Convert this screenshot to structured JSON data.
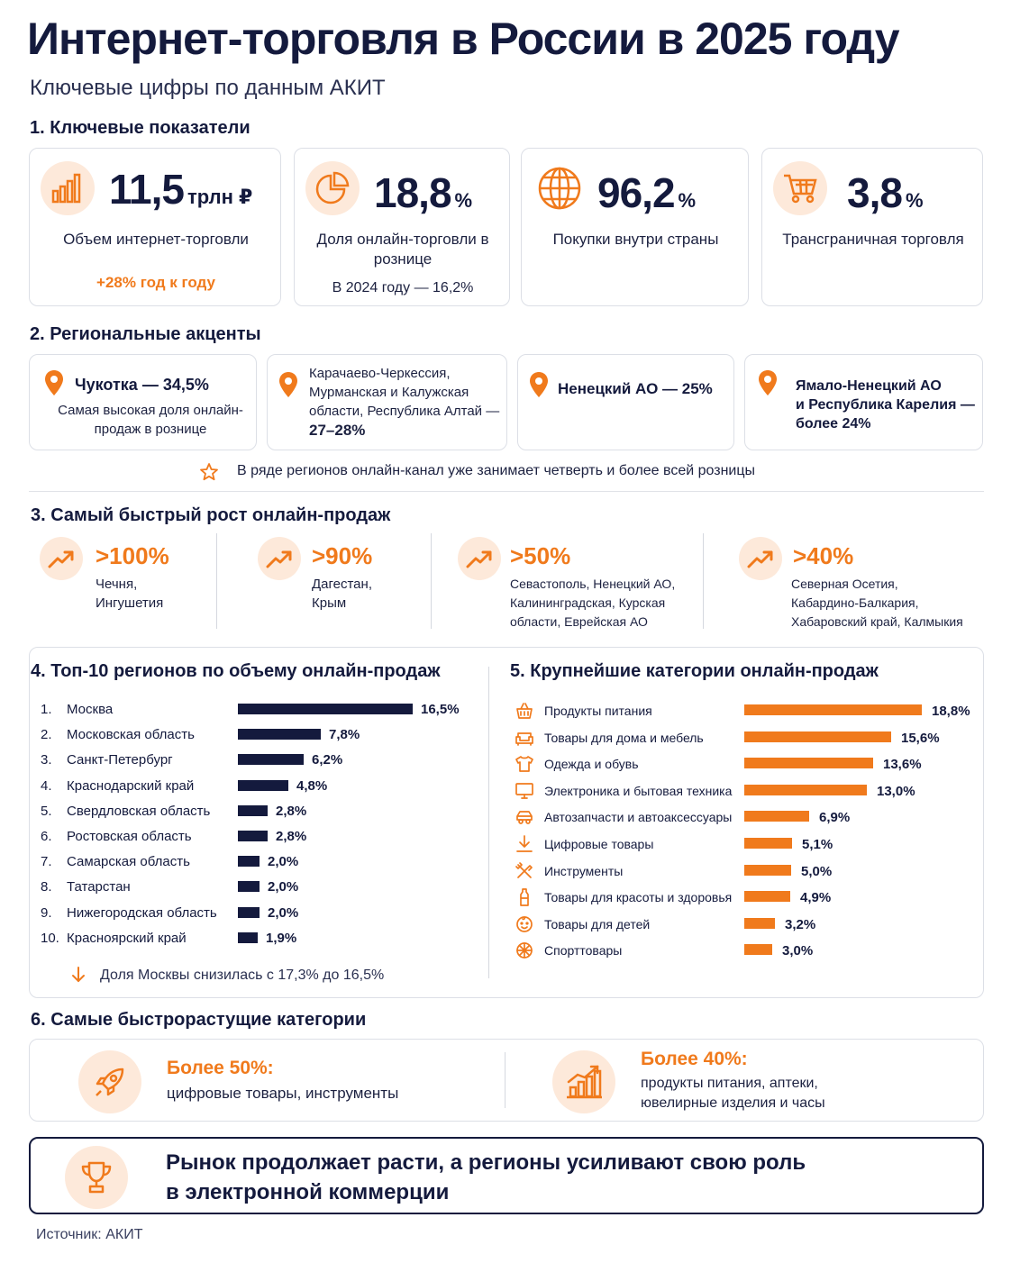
{
  "header": {
    "title": "Интернет-торговля в России в 2025 году",
    "subtitle": "Ключевые цифры по данным АКИТ"
  },
  "kpi": {
    "section_title": "1. Ключевые показатели",
    "items": [
      {
        "value": "11,5",
        "unit": "трлн ₽",
        "label": "Объем интернет-торговли",
        "note": "+28% год к году",
        "icon": "bar-chart-icon"
      },
      {
        "value": "18,8",
        "unit": "%",
        "label": "Доля онлайн-торговли в рознице",
        "note": "В 2024 году — 16,2%",
        "icon": "pie-chart-icon"
      },
      {
        "value": "96,2",
        "unit": "%",
        "label": "Покупки внутри страны",
        "note": "",
        "icon": "globe-icon"
      },
      {
        "value": "3,8",
        "unit": "%",
        "label": "Трансграничная торговля",
        "note": "",
        "icon": "cart-icon"
      }
    ]
  },
  "regions": {
    "section_title": "2. Региональные акценты",
    "items": [
      {
        "title": "Чукотка — 34,5%",
        "sub": "Самая высокая доля онлайн-продаж в рознице"
      },
      {
        "title_lines": [
          "Карачаево-Черкессия,",
          "Мурманская и Калужская",
          "области, Республика Алтай —"
        ],
        "title_bold": "27–28%"
      },
      {
        "title": "Ненецкий АО — 25%"
      },
      {
        "title_lines": [
          "Ямало-Ненецкий АО",
          "и Республика Карелия —",
          "более 24%"
        ]
      }
    ],
    "note": "В ряде регионов онлайн-канал уже занимает четверть и более всей розницы"
  },
  "growth": {
    "section_title": "3. Самый быстрый рост онлайн-продаж",
    "items": [
      {
        "value": ">100%",
        "lines": [
          "Чечня,",
          "Ингушетия"
        ]
      },
      {
        "value": ">90%",
        "lines": [
          "Дагестан,",
          "Крым"
        ]
      },
      {
        "value": ">50%",
        "lines": [
          "Севастополь, Ненецкий АО,",
          "Калининградская, Курская",
          "области, Еврейская АО"
        ]
      },
      {
        "value": ">40%",
        "lines": [
          "Северная Осетия,",
          "Кабардино-Балкария,",
          "Хабаровский край, Калмыкия"
        ]
      }
    ]
  },
  "top_regions": {
    "section_title": "4. Топ-10 регионов по объему онлайн-продаж",
    "note": "Доля Москвы снизилась с 17,3% до 16,5%"
  },
  "categories": {
    "section_title": "5. Крупнейшие категории онлайн-продаж"
  },
  "fast_categories": {
    "section_title": "6. Самые быстрорастущие категории",
    "items": [
      {
        "head": "Более 50%:",
        "lines": [
          "цифровые товары, инструменты"
        ]
      },
      {
        "head": "Более 40%:",
        "lines": [
          "продукты питания, аптеки,",
          "ювелирные изделия и часы"
        ]
      }
    ]
  },
  "conclusion": {
    "lines": [
      "Рынок продолжает расти, а регионы усиливают свою роль",
      "в электронной коммерции"
    ]
  },
  "footer": {
    "source": "Источник: АКИТ"
  },
  "colors": {
    "navy": "#141a3d",
    "orange": "#f07a1c",
    "light_orange": "#fde9da"
  },
  "chart_data": [
    {
      "type": "bar",
      "orientation": "horizontal",
      "categories": [
        "Москва",
        "Московская область",
        "Санкт-Петербург",
        "Краснодарский край",
        "Свердловская область",
        "Ростовская область",
        "Самарская область",
        "Татарстан",
        "Нижегородская область",
        "Красноярский край"
      ],
      "ranks": [
        "1.",
        "2.",
        "3.",
        "4.",
        "5.",
        "6.",
        "7.",
        "8.",
        "9.",
        "10."
      ],
      "values": [
        16.5,
        7.8,
        6.2,
        4.8,
        2.8,
        2.8,
        2.0,
        2.0,
        2.0,
        1.9
      ],
      "value_labels": [
        "16,5%",
        "7,8%",
        "6,2%",
        "4,8%",
        "2,8%",
        "2,8%",
        "2,0%",
        "2,0%",
        "2,0%",
        "1,9%"
      ],
      "color": "#141a3d"
    },
    {
      "type": "bar",
      "orientation": "horizontal",
      "categories": [
        "Продукты питания",
        "Товары для дома и мебель",
        "Одежда и обувь",
        "Электроника и бытовая техника",
        "Автозапчасти и автоаксессуары",
        "Цифровые товары",
        "Инструменты",
        "Товары для красоты и здоровья",
        "Товары для детей",
        "Спорттовары"
      ],
      "icons": [
        "basket-icon",
        "sofa-icon",
        "tshirt-icon",
        "monitor-icon",
        "car-icon",
        "download-icon",
        "tools-icon",
        "bottle-icon",
        "baby-icon",
        "ball-icon"
      ],
      "values": [
        18.8,
        15.6,
        13.6,
        13.0,
        6.9,
        5.1,
        5.0,
        4.9,
        3.2,
        3.0
      ],
      "value_labels": [
        "18,8%",
        "15,6%",
        "13,6%",
        "13,0%",
        "6,9%",
        "5,1%",
        "5,0%",
        "4,9%",
        "3,2%",
        "3,0%"
      ],
      "color": "#f07a1c"
    }
  ]
}
